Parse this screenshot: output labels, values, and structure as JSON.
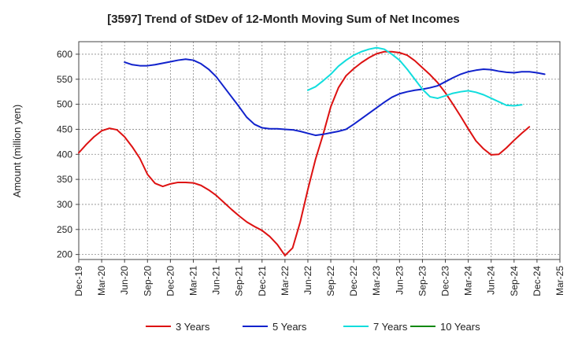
{
  "chart_data": {
    "type": "line",
    "title": "[3597]  Trend of StDev of 12-Month Moving Sum of Net Incomes",
    "xlabel": "",
    "ylabel": "Amount (million yen)",
    "ylim": [
      190,
      625
    ],
    "yticks": [
      200,
      250,
      300,
      350,
      400,
      450,
      500,
      550,
      600
    ],
    "xticks": [
      "Dec-19",
      "Mar-20",
      "Jun-20",
      "Sep-20",
      "Dec-20",
      "Mar-21",
      "Jun-21",
      "Sep-21",
      "Dec-21",
      "Mar-22",
      "Jun-22",
      "Sep-22",
      "Dec-22",
      "Mar-23",
      "Jun-23",
      "Sep-23",
      "Dec-23",
      "Mar-24",
      "Jun-24",
      "Sep-24",
      "Dec-24",
      "Mar-25"
    ],
    "grid": true,
    "legend_position": "bottom",
    "series": [
      {
        "name": "3 Years",
        "color": "#dd1111",
        "start_month_index": 0,
        "values": [
          403,
          420,
          435,
          447,
          452,
          449,
          435,
          415,
          392,
          360,
          342,
          336,
          341,
          344,
          344,
          343,
          338,
          329,
          318,
          304,
          290,
          277,
          265,
          256,
          248,
          236,
          220,
          198,
          213,
          265,
          330,
          390,
          440,
          495,
          533,
          557,
          571,
          583,
          593,
          601,
          605,
          605,
          603,
          598,
          587,
          573,
          559,
          543,
          523,
          500,
          476,
          451,
          427,
          411,
          399,
          400,
          413,
          428,
          442,
          455
        ]
      },
      {
        "name": "5 Years",
        "color": "#1122cc",
        "start_month_index": 6,
        "values": [
          584,
          579,
          577,
          577,
          579,
          582,
          585,
          588,
          590,
          588,
          581,
          570,
          555,
          535,
          515,
          495,
          474,
          460,
          453,
          451,
          451,
          450,
          449,
          446,
          442,
          438,
          440,
          443,
          446,
          450,
          460,
          471,
          482,
          493,
          504,
          514,
          521,
          525,
          528,
          530,
          533,
          537,
          545,
          553,
          560,
          565,
          568,
          570,
          569,
          566,
          564,
          563,
          565,
          565,
          563,
          560
        ]
      },
      {
        "name": "7 Years",
        "color": "#11dddd",
        "start_month_index": 30,
        "values": [
          528,
          535,
          547,
          560,
          576,
          588,
          598,
          605,
          610,
          613,
          610,
          600,
          588,
          570,
          550,
          530,
          515,
          512,
          517,
          522,
          525,
          527,
          524,
          519,
          512,
          505,
          498,
          497,
          499
        ]
      },
      {
        "name": "10 Years",
        "color": "#118811",
        "start_month_index": 0,
        "values": []
      }
    ]
  }
}
